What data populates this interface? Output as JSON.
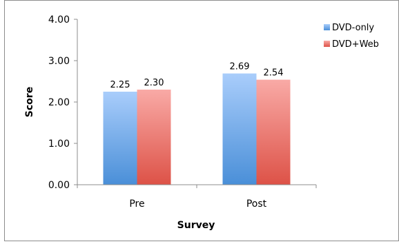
{
  "chart_data": {
    "type": "bar",
    "categories": [
      "Pre",
      "Post"
    ],
    "series": [
      {
        "name": "DVD-only",
        "values": [
          2.25,
          2.69
        ],
        "color_top": "#a9cdfb",
        "color_bottom": "#4a8fd8"
      },
      {
        "name": "DVD+Web",
        "values": [
          2.3,
          2.54
        ],
        "color_top": "#f9aaa6",
        "color_bottom": "#dd5247"
      }
    ],
    "data_labels": [
      [
        "2.25",
        "2.69"
      ],
      [
        "2.30",
        "2.54"
      ]
    ],
    "xlabel": "Survey",
    "ylabel": "Score",
    "ylim": [
      0,
      4
    ],
    "yticks": [
      0,
      1,
      2,
      3,
      4
    ],
    "ytick_labels": [
      "0.00",
      "1.00",
      "2.00",
      "3.00",
      "4.00"
    ],
    "grid": false,
    "legend_position": "right",
    "colors": {
      "frame": "#8c8c8c",
      "axis": "#8c8c8c"
    }
  }
}
